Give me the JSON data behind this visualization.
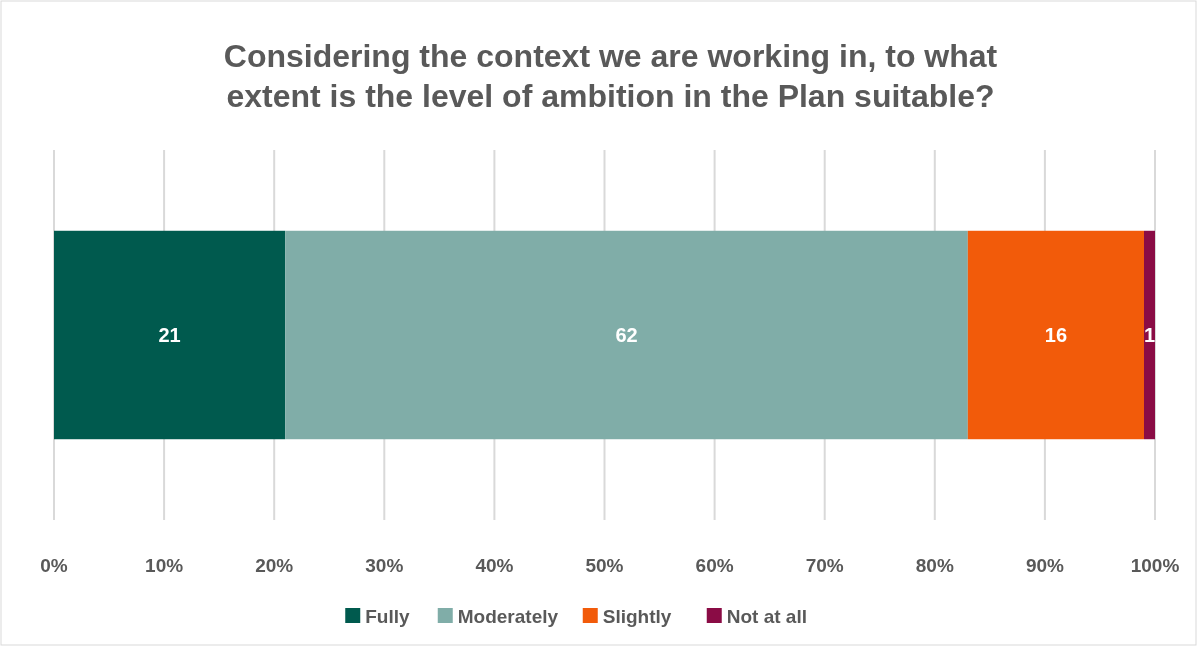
{
  "chart_data": {
    "type": "bar",
    "orientation": "horizontal",
    "stacked": true,
    "title": "Considering the context we are working in, to what\nextent is the level of ambition in the Plan suitable?",
    "categories": [
      null
    ],
    "series": [
      {
        "name": "Fully",
        "color": "#005a4e",
        "values": [
          21
        ]
      },
      {
        "name": "Moderately",
        "color": "#80ada8",
        "values": [
          62
        ]
      },
      {
        "name": "Slightly",
        "color": "#f25b0a",
        "values": [
          16
        ]
      },
      {
        "name": "Not at all",
        "color": "#8a0c45",
        "values": [
          1
        ]
      }
    ],
    "xlim": [
      0,
      100
    ],
    "xticks": [
      {
        "value": 0,
        "label": "0%"
      },
      {
        "value": 10,
        "label": "10%"
      },
      {
        "value": 20,
        "label": "20%"
      },
      {
        "value": 30,
        "label": "30%"
      },
      {
        "value": 40,
        "label": "40%"
      },
      {
        "value": 50,
        "label": "50%"
      },
      {
        "value": 60,
        "label": "60%"
      },
      {
        "value": 70,
        "label": "70%"
      },
      {
        "value": 80,
        "label": "80%"
      },
      {
        "value": 90,
        "label": "90%"
      },
      {
        "value": 100,
        "label": "100%"
      }
    ],
    "grid": "x",
    "legend": "bottom",
    "data_labels": true
  }
}
